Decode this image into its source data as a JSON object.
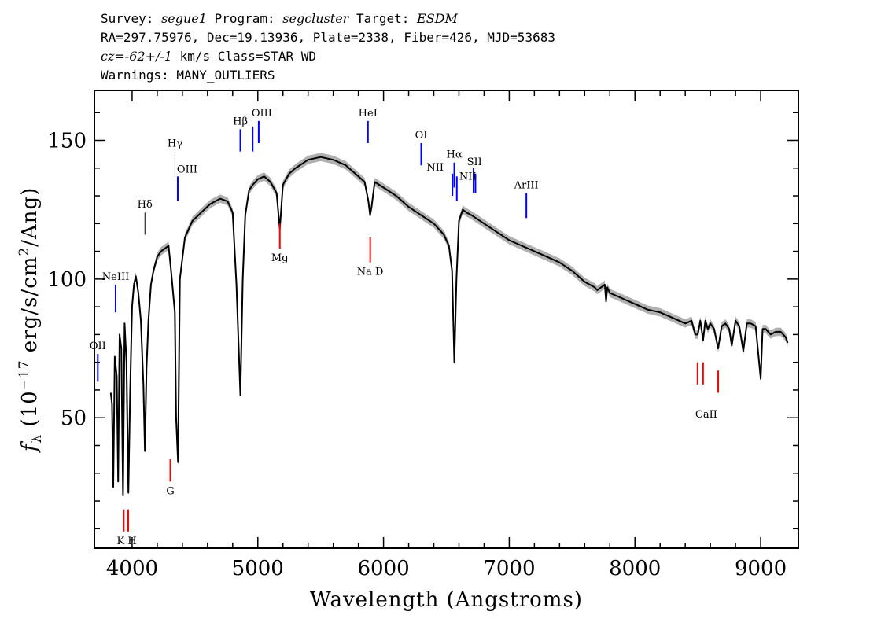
{
  "header": {
    "line1": {
      "p1": "Survey: ",
      "survey": "segue1",
      "p2": " Program: ",
      "program": "segcluster",
      "p3": " Target: ",
      "target": "ESDM"
    },
    "line2": "RA=297.75976, Dec=19.13936, Plate=2338, Fiber=426, MJD=53683",
    "line3": {
      "cz": "cz=-62+/-1",
      "rest": " km/s Class=STAR WD"
    },
    "line4": "Warnings: MANY_OUTLIERS"
  },
  "colors": {
    "emission": "#0000ff",
    "absorption": "#ff0000",
    "spectrum": "#000000",
    "error_band": "#b0b0b0"
  },
  "chart_data": {
    "type": "line",
    "xlabel": "Wavelength (Angstroms)",
    "ylabel": "f_λ (10^-17 erg/s/cm^2/Ang)",
    "xlim": [
      3700,
      9300
    ],
    "ylim": [
      3,
      168
    ],
    "x_ticks": [
      4000,
      5000,
      6000,
      7000,
      8000,
      9000
    ],
    "y_ticks": [
      50,
      100,
      150
    ],
    "series": [
      {
        "x": [
          3830,
          3840,
          3850,
          3862,
          3878,
          3889,
          3900,
          3914,
          3928,
          3940,
          3955,
          3970,
          3985,
          4000,
          4015,
          4030,
          4050,
          4070,
          4090,
          4102,
          4115,
          4130,
          4150,
          4170,
          4200,
          4230,
          4260,
          4290,
          4310,
          4330,
          4340,
          4350,
          4365,
          4380,
          4420,
          4480,
          4550,
          4620,
          4700,
          4760,
          4800,
          4830,
          4861,
          4880,
          4900,
          4930,
          4960,
          5000,
          5050,
          5100,
          5150,
          5175,
          5200,
          5250,
          5300,
          5400,
          5500,
          5600,
          5700,
          5800,
          5850,
          5880,
          5893,
          5905,
          5930,
          6000,
          6100,
          6200,
          6300,
          6400,
          6480,
          6520,
          6545,
          6563,
          6580,
          6600,
          6630,
          6660,
          6700,
          6800,
          6900,
          7000,
          7100,
          7200,
          7300,
          7400,
          7500,
          7600,
          7680,
          7700,
          7760,
          7770,
          7780,
          7800,
          7900,
          8000,
          8100,
          8200,
          8300,
          8400,
          8450,
          8480,
          8500,
          8520,
          8542,
          8560,
          8580,
          8600,
          8630,
          8662,
          8690,
          8720,
          8750,
          8770,
          8800,
          8830,
          8862,
          8890,
          8920,
          8960,
          9000,
          9015,
          9040,
          9080,
          9120,
          9160,
          9200,
          9215
        ],
        "y": [
          59,
          55,
          25,
          72,
          65,
          27,
          80,
          75,
          22,
          84,
          70,
          23,
          60,
          90,
          98,
          101,
          95,
          85,
          62,
          38,
          68,
          85,
          98,
          103,
          108,
          110,
          111,
          112,
          103,
          93,
          88,
          50,
          34,
          100,
          115,
          121,
          124,
          127,
          129,
          128,
          124,
          98,
          58,
          100,
          123,
          132,
          134,
          136,
          137,
          135,
          131,
          118,
          134,
          138,
          140,
          143,
          144,
          143,
          141,
          137,
          135,
          128,
          123,
          126,
          135,
          133,
          130,
          126,
          123,
          120,
          116,
          112,
          103,
          70,
          100,
          121,
          125,
          124,
          123,
          120,
          117,
          114,
          112,
          110,
          108,
          106,
          103,
          99,
          97,
          96,
          98,
          92,
          97,
          95,
          93,
          91,
          89,
          88,
          86,
          84,
          85,
          80,
          80,
          85,
          78,
          85,
          82,
          84,
          82,
          75,
          83,
          84,
          82,
          76,
          85,
          83,
          74,
          84,
          84,
          83,
          64,
          82,
          82,
          80,
          81,
          81,
          79,
          77
        ],
        "error_band_halfwidth": 1.5
      }
    ],
    "line_labels": [
      {
        "label": "OII",
        "wavelength": 3727,
        "kind": "emission",
        "y_top": 73,
        "y_bottom": 63
      },
      {
        "label": "NeIII",
        "wavelength": 3869,
        "kind": "emission",
        "y_top": 98,
        "y_bottom": 88
      },
      {
        "label": "Hδ",
        "wavelength": 4102,
        "kind": "hydrogen",
        "y_top": 124,
        "y_bottom": 116
      },
      {
        "label": "Hγ",
        "wavelength": 4341,
        "kind": "hydrogen",
        "y_top": 146,
        "y_bottom": 137
      },
      {
        "label": "OIII",
        "wavelength": 4363,
        "kind": "emission",
        "y_top": 137,
        "y_bottom": 128
      },
      {
        "label": "Hβ",
        "wavelength": 4861,
        "kind": "emission",
        "y_top": 154,
        "y_bottom": 146
      },
      {
        "label": "OIII",
        "wavelength": 4959,
        "kind": "emission",
        "y_top": 155,
        "y_bottom": 146
      },
      {
        "label": "OIII",
        "wavelength": 5007,
        "kind": "emission",
        "y_top": 157,
        "y_bottom": 149
      },
      {
        "label": "HeI",
        "wavelength": 5876,
        "kind": "emission",
        "y_top": 157,
        "y_bottom": 149
      },
      {
        "label": "OI",
        "wavelength": 6300,
        "kind": "emission",
        "y_top": 149,
        "y_bottom": 141
      },
      {
        "label": "NII",
        "wavelength": 6548,
        "kind": "emission",
        "y_top": 138,
        "y_bottom": 130
      },
      {
        "label": "Hα",
        "wavelength": 6563,
        "kind": "emission",
        "y_top": 142,
        "y_bottom": 133
      },
      {
        "label": "NII",
        "wavelength": 6583,
        "kind": "emission",
        "y_top": 137,
        "y_bottom": 128
      },
      {
        "label": "SII",
        "wavelength": 6716,
        "kind": "emission",
        "y_top": 140,
        "y_bottom": 131
      },
      {
        "label": "SII",
        "wavelength": 6731,
        "kind": "emission",
        "y_top": 138,
        "y_bottom": 131
      },
      {
        "label": "ArIII",
        "wavelength": 7136,
        "kind": "emission",
        "y_top": 131,
        "y_bottom": 122
      },
      {
        "label": "K",
        "wavelength": 3934,
        "kind": "absorption",
        "y_top": 17,
        "y_bottom": 9
      },
      {
        "label": "H",
        "wavelength": 3969,
        "kind": "absorption",
        "y_top": 17,
        "y_bottom": 9
      },
      {
        "label": "G",
        "wavelength": 4304,
        "kind": "absorption",
        "y_top": 35,
        "y_bottom": 27
      },
      {
        "label": "Mg",
        "wavelength": 5175,
        "kind": "absorption",
        "y_top": 120,
        "y_bottom": 111
      },
      {
        "label": "Na",
        "wavelength": 5894,
        "kind": "absorption",
        "y_top": 115,
        "y_bottom": 106
      },
      {
        "label": "CaII",
        "wavelength": 8498,
        "kind": "absorption",
        "y_top": 70,
        "y_bottom": 62
      },
      {
        "label": "CaII",
        "wavelength": 8542,
        "kind": "absorption",
        "y_top": 70,
        "y_bottom": 62
      },
      {
        "label": "CaII",
        "wavelength": 8662,
        "kind": "absorption",
        "y_top": 67,
        "y_bottom": 59
      }
    ]
  }
}
